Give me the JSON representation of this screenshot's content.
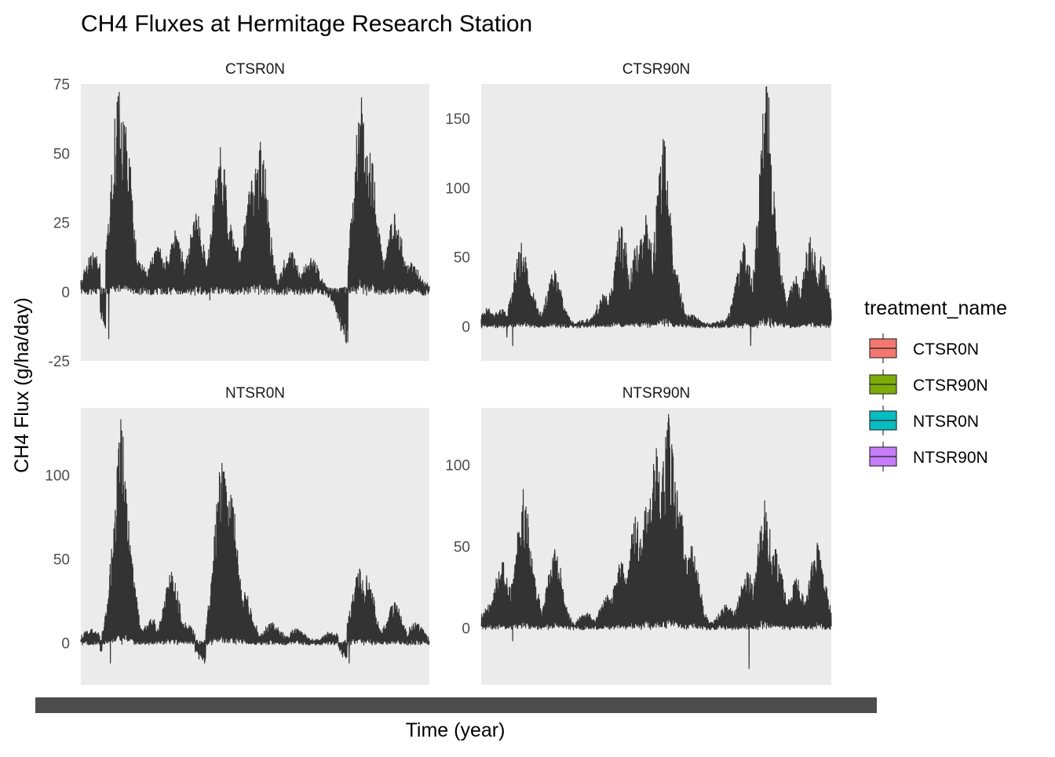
{
  "chart_data": {
    "type": "line",
    "title": "CH4 Fluxes at Hermitage Research Station",
    "xlabel": "Time (year)",
    "ylabel": "CH4 Flux (g/ha/day)",
    "legend": {
      "title": "treatment_name",
      "position": "right",
      "entries": [
        {
          "label": "CTSR0N",
          "color": "#F8766D"
        },
        {
          "label": "CTSR90N",
          "color": "#7CAE00"
        },
        {
          "label": "NTSR0N",
          "color": "#00BFC4"
        },
        {
          "label": "NTSR90N",
          "color": "#C77CFF"
        }
      ]
    },
    "line_color": "#333333",
    "panel_background": "#EBEBEB",
    "grid": false,
    "facets": [
      {
        "name": "CTSR0N",
        "ylim": [
          -25,
          75
        ],
        "yticks": [
          -25,
          0,
          25,
          50,
          75
        ],
        "peaks": [
          [
            0.0,
            4
          ],
          [
            0.02,
            6
          ],
          [
            0.035,
            14
          ],
          [
            0.05,
            6
          ],
          [
            0.08,
            -17
          ],
          [
            0.11,
            72
          ],
          [
            0.125,
            60
          ],
          [
            0.17,
            10
          ],
          [
            0.22,
            16
          ],
          [
            0.27,
            22
          ],
          [
            0.33,
            28
          ],
          [
            0.37,
            -3
          ],
          [
            0.4,
            52
          ],
          [
            0.43,
            24
          ],
          [
            0.49,
            40
          ],
          [
            0.51,
            20
          ],
          [
            0.515,
            54
          ],
          [
            0.6,
            14
          ],
          [
            0.66,
            12
          ],
          [
            0.76,
            -18
          ],
          [
            0.8,
            52
          ],
          [
            0.805,
            70
          ],
          [
            0.83,
            50
          ],
          [
            0.9,
            28
          ],
          [
            0.95,
            10
          ],
          [
            1.0,
            2
          ]
        ]
      },
      {
        "name": "CTSR90N",
        "ylim": [
          -25,
          175
        ],
        "yticks": [
          0,
          50,
          100,
          150
        ],
        "peaks": [
          [
            0.0,
            5
          ],
          [
            0.02,
            12
          ],
          [
            0.06,
            12
          ],
          [
            0.09,
            -14
          ],
          [
            0.115,
            60
          ],
          [
            0.135,
            30
          ],
          [
            0.21,
            40
          ],
          [
            0.3,
            4
          ],
          [
            0.35,
            22
          ],
          [
            0.4,
            72
          ],
          [
            0.445,
            58
          ],
          [
            0.47,
            80
          ],
          [
            0.52,
            135
          ],
          [
            0.545,
            52
          ],
          [
            0.6,
            8
          ],
          [
            0.7,
            4
          ],
          [
            0.75,
            60
          ],
          [
            0.77,
            -14
          ],
          [
            0.8,
            48
          ],
          [
            0.815,
            173
          ],
          [
            0.84,
            65
          ],
          [
            0.9,
            36
          ],
          [
            0.94,
            64
          ],
          [
            0.97,
            50
          ],
          [
            1.0,
            4
          ]
        ]
      },
      {
        "name": "NTSR0N",
        "ylim": [
          -25,
          140
        ],
        "yticks": [
          0,
          50,
          100
        ],
        "peaks": [
          [
            0.0,
            2
          ],
          [
            0.03,
            8
          ],
          [
            0.07,
            6
          ],
          [
            0.085,
            -12
          ],
          [
            0.1,
            26
          ],
          [
            0.115,
            133
          ],
          [
            0.13,
            70
          ],
          [
            0.2,
            14
          ],
          [
            0.26,
            42
          ],
          [
            0.3,
            12
          ],
          [
            0.355,
            -12
          ],
          [
            0.405,
            107
          ],
          [
            0.43,
            88
          ],
          [
            0.47,
            30
          ],
          [
            0.55,
            12
          ],
          [
            0.62,
            8
          ],
          [
            0.72,
            6
          ],
          [
            0.77,
            -12
          ],
          [
            0.8,
            44
          ],
          [
            0.82,
            40
          ],
          [
            0.9,
            24
          ],
          [
            0.96,
            12
          ],
          [
            1.0,
            1
          ]
        ]
      },
      {
        "name": "NTSR90N",
        "ylim": [
          -35,
          135
        ],
        "yticks": [
          0,
          50,
          100
        ],
        "peaks": [
          [
            0.0,
            1
          ],
          [
            0.025,
            14
          ],
          [
            0.06,
            40
          ],
          [
            0.09,
            -8
          ],
          [
            0.12,
            85
          ],
          [
            0.14,
            38
          ],
          [
            0.21,
            48
          ],
          [
            0.3,
            8
          ],
          [
            0.36,
            20
          ],
          [
            0.4,
            40
          ],
          [
            0.44,
            68
          ],
          [
            0.47,
            74
          ],
          [
            0.5,
            110
          ],
          [
            0.52,
            90
          ],
          [
            0.535,
            131
          ],
          [
            0.56,
            84
          ],
          [
            0.6,
            50
          ],
          [
            0.7,
            14
          ],
          [
            0.76,
            34
          ],
          [
            0.765,
            -25
          ],
          [
            0.8,
            48
          ],
          [
            0.81,
            78
          ],
          [
            0.84,
            48
          ],
          [
            0.9,
            30
          ],
          [
            0.96,
            52
          ],
          [
            1.0,
            1
          ]
        ]
      }
    ]
  }
}
